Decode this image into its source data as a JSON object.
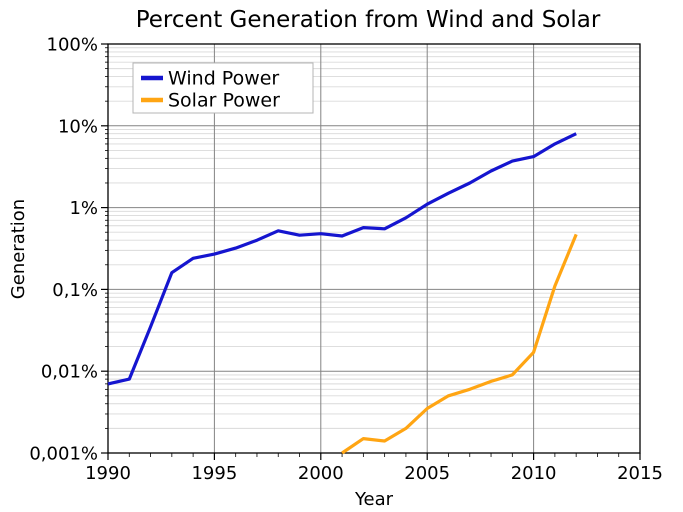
{
  "title": "Percent Generation from Wind and Solar",
  "colors": {
    "wind": "#1515cf",
    "solar": "#ffa513",
    "grid_major": "#848484",
    "grid_minor": "#d9d9d9",
    "frame": "#000000"
  },
  "chart_data": {
    "type": "line",
    "title": "Percent Generation from Wind and Solar",
    "xlabel": "Year",
    "ylabel": "Generation",
    "x_range": [
      1990,
      2015
    ],
    "y_scale": "log",
    "y_range": [
      0.001,
      100
    ],
    "y_unit": "percent",
    "grid": {
      "major": true,
      "minor_horizontal": true,
      "minor_vertical": false
    },
    "legend_position": "upper-left",
    "x_major_ticks": [
      1990,
      1995,
      2000,
      2005,
      2010,
      2015
    ],
    "x_minor_tick_step": 1,
    "y_major_ticks": [
      {
        "value": 100,
        "label": "100%"
      },
      {
        "value": 10,
        "label": "10%"
      },
      {
        "value": 1,
        "label": "1%"
      },
      {
        "value": 0.1,
        "label": "0,1%"
      },
      {
        "value": 0.01,
        "label": "0,01%"
      },
      {
        "value": 0.001,
        "label": "0,001%"
      }
    ],
    "series": [
      {
        "name": "Wind Power",
        "color": "#1515cf",
        "x": [
          1990,
          1991,
          1992,
          1993,
          1994,
          1995,
          1996,
          1997,
          1998,
          1999,
          2000,
          2001,
          2002,
          2003,
          2004,
          2005,
          2006,
          2007,
          2008,
          2009,
          2010,
          2011,
          2012
        ],
        "values": [
          0.007,
          0.008,
          0.035,
          0.16,
          0.24,
          0.27,
          0.32,
          0.4,
          0.52,
          0.46,
          0.48,
          0.45,
          0.57,
          0.55,
          0.75,
          1.1,
          1.5,
          2.0,
          2.8,
          3.7,
          4.2,
          6.0,
          8.0
        ]
      },
      {
        "name": "Solar Power",
        "color": "#ffa513",
        "x": [
          2001,
          2002,
          2003,
          2004,
          2005,
          2006,
          2007,
          2008,
          2009,
          2010,
          2011,
          2012
        ],
        "values": [
          0.001,
          0.0015,
          0.0014,
          0.002,
          0.0035,
          0.005,
          0.006,
          0.0075,
          0.009,
          0.017,
          0.11,
          0.47
        ]
      }
    ]
  }
}
